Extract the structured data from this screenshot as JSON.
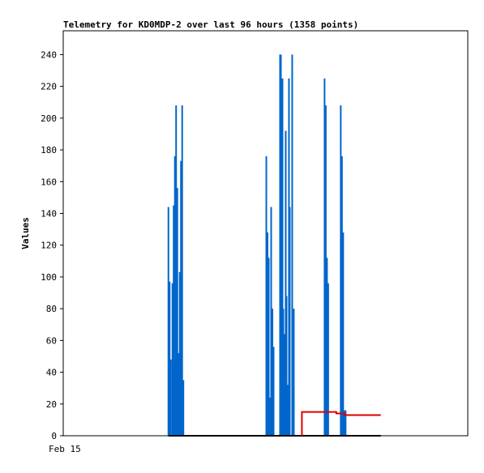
{
  "chart_data": {
    "type": "line",
    "title": "Telemetry for KD0MDP-2 over last 96 hours (1358 points)",
    "xlabel": "",
    "ylabel": "Values",
    "x_tick_labels": [
      "Feb 15"
    ],
    "ylim": [
      0,
      255
    ],
    "yticks": [
      0,
      20,
      40,
      60,
      80,
      100,
      120,
      140,
      160,
      180,
      200,
      220,
      240
    ],
    "x_unit": "hours since start of plotted window",
    "xlim": [
      0,
      100
    ],
    "grid": false,
    "legend": "none",
    "series": [
      {
        "color": "#0066cc",
        "style": "spikes",
        "x": [
          26.0,
          26.3,
          26.6,
          27.0,
          27.3,
          27.6,
          27.9,
          28.2,
          28.5,
          28.8,
          29.1,
          29.4,
          29.7,
          50.2,
          50.5,
          50.8,
          51.1,
          51.4,
          51.7,
          52.0,
          53.6,
          53.8,
          54.0,
          54.2,
          54.4,
          54.6,
          54.8,
          55.0,
          55.2,
          55.4,
          55.6,
          55.8,
          56.0,
          56.2,
          56.6,
          57.0,
          57.4,
          57.8,
          64.6,
          64.9,
          65.2,
          65.5,
          68.6,
          68.9,
          69.2,
          69.5,
          69.8,
          70.1
        ],
        "y": [
          144,
          97,
          48,
          96,
          145,
          176,
          208,
          156,
          52,
          103,
          173,
          208,
          35,
          176,
          128,
          112,
          24,
          144,
          80,
          56,
          240,
          240,
          208,
          225,
          80,
          64,
          64,
          192,
          88,
          32,
          32,
          225,
          144,
          0,
          240,
          80,
          0,
          0,
          225,
          208,
          112,
          96,
          208,
          176,
          128,
          16,
          16,
          0
        ]
      },
      {
        "color": "#000000",
        "style": "line",
        "x": [
          26.0,
          78.5
        ],
        "y": [
          0,
          0
        ]
      },
      {
        "color": "#dd0000",
        "style": "step",
        "x": [
          59.0,
          59.0,
          67.5,
          67.5,
          69.5,
          69.5,
          78.5
        ],
        "y": [
          0,
          15,
          15,
          14,
          14,
          13,
          13
        ]
      }
    ]
  }
}
